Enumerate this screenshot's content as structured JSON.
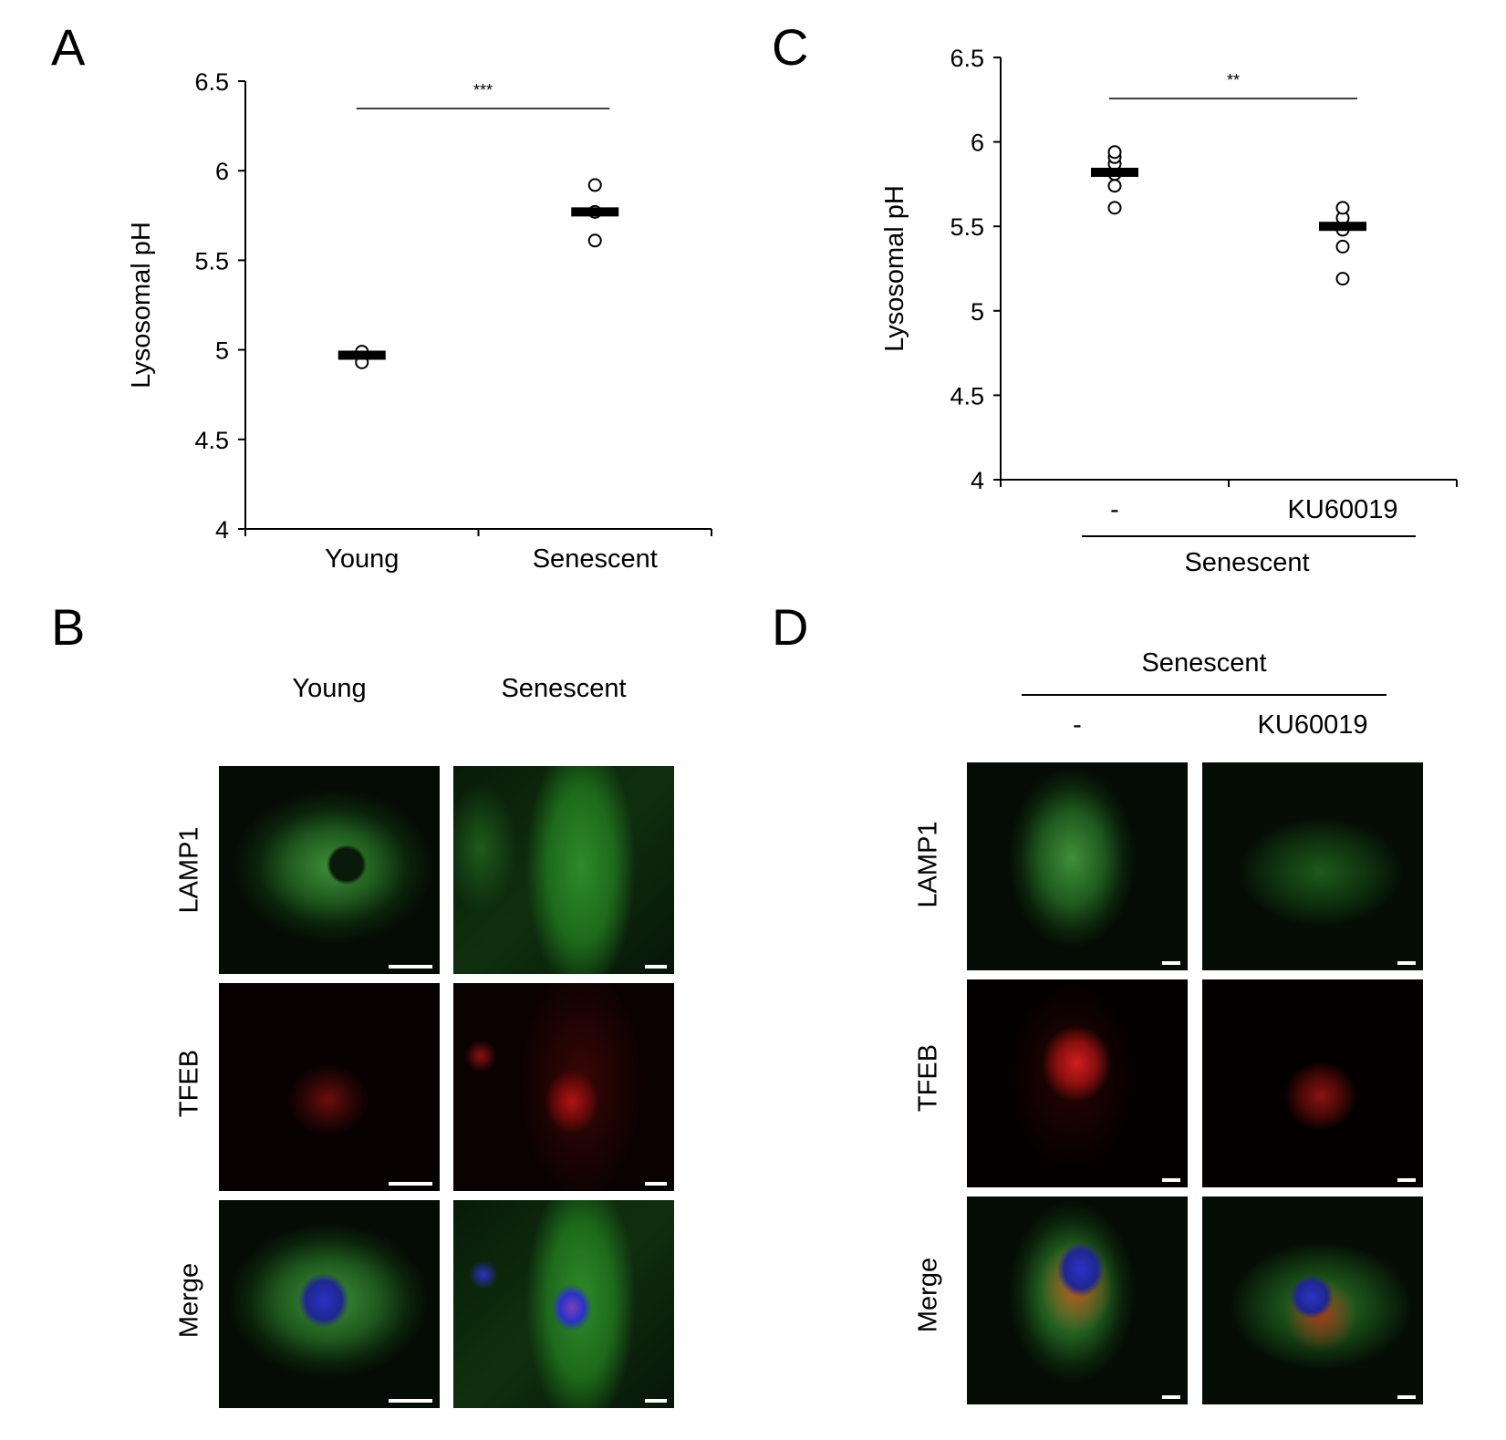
{
  "panels": {
    "A": {
      "letter": "A"
    },
    "B": {
      "letter": "B"
    },
    "C": {
      "letter": "C"
    },
    "D": {
      "letter": "D"
    }
  },
  "chart_data": [
    {
      "id": "A",
      "type": "scatter",
      "ylabel": "Lysosomal pH",
      "ylim": [
        4,
        6.5
      ],
      "yticks": [
        "6.5",
        "6",
        "5.5",
        "5",
        "4.5",
        "4"
      ],
      "categories": [
        "Young",
        "Senescent"
      ],
      "points": [
        [
          4.97,
          4.93,
          4.99
        ],
        [
          5.61,
          5.77,
          5.92
        ]
      ],
      "means": [
        4.97,
        5.77
      ],
      "significance": "***",
      "group_label": ""
    },
    {
      "id": "C",
      "type": "scatter",
      "ylabel": "Lysosomal pH",
      "ylim": [
        4,
        6.5
      ],
      "yticks": [
        "6.5",
        "6",
        "5.5",
        "5",
        "4.5",
        "4"
      ],
      "categories": [
        "-",
        "KU60019"
      ],
      "points": [
        [
          5.61,
          5.74,
          5.81,
          5.87,
          5.91,
          5.94
        ],
        [
          5.19,
          5.38,
          5.48,
          5.55,
          5.61
        ]
      ],
      "means": [
        5.82,
        5.5
      ],
      "significance": "**",
      "group_label": "Senescent"
    }
  ],
  "panel_B": {
    "columns": [
      "Young",
      "Senescent"
    ],
    "rows": [
      "LAMP1",
      "TFEB",
      "Merge"
    ]
  },
  "panel_D": {
    "group_label": "Senescent",
    "columns": [
      "-",
      "KU60019"
    ],
    "rows": [
      "LAMP1",
      "TFEB",
      "Merge"
    ]
  },
  "colors": {
    "lamp1": "#3fa83f",
    "tfeb": "#d11e1e",
    "dapi": "#2a32c8",
    "background": "#000000"
  }
}
